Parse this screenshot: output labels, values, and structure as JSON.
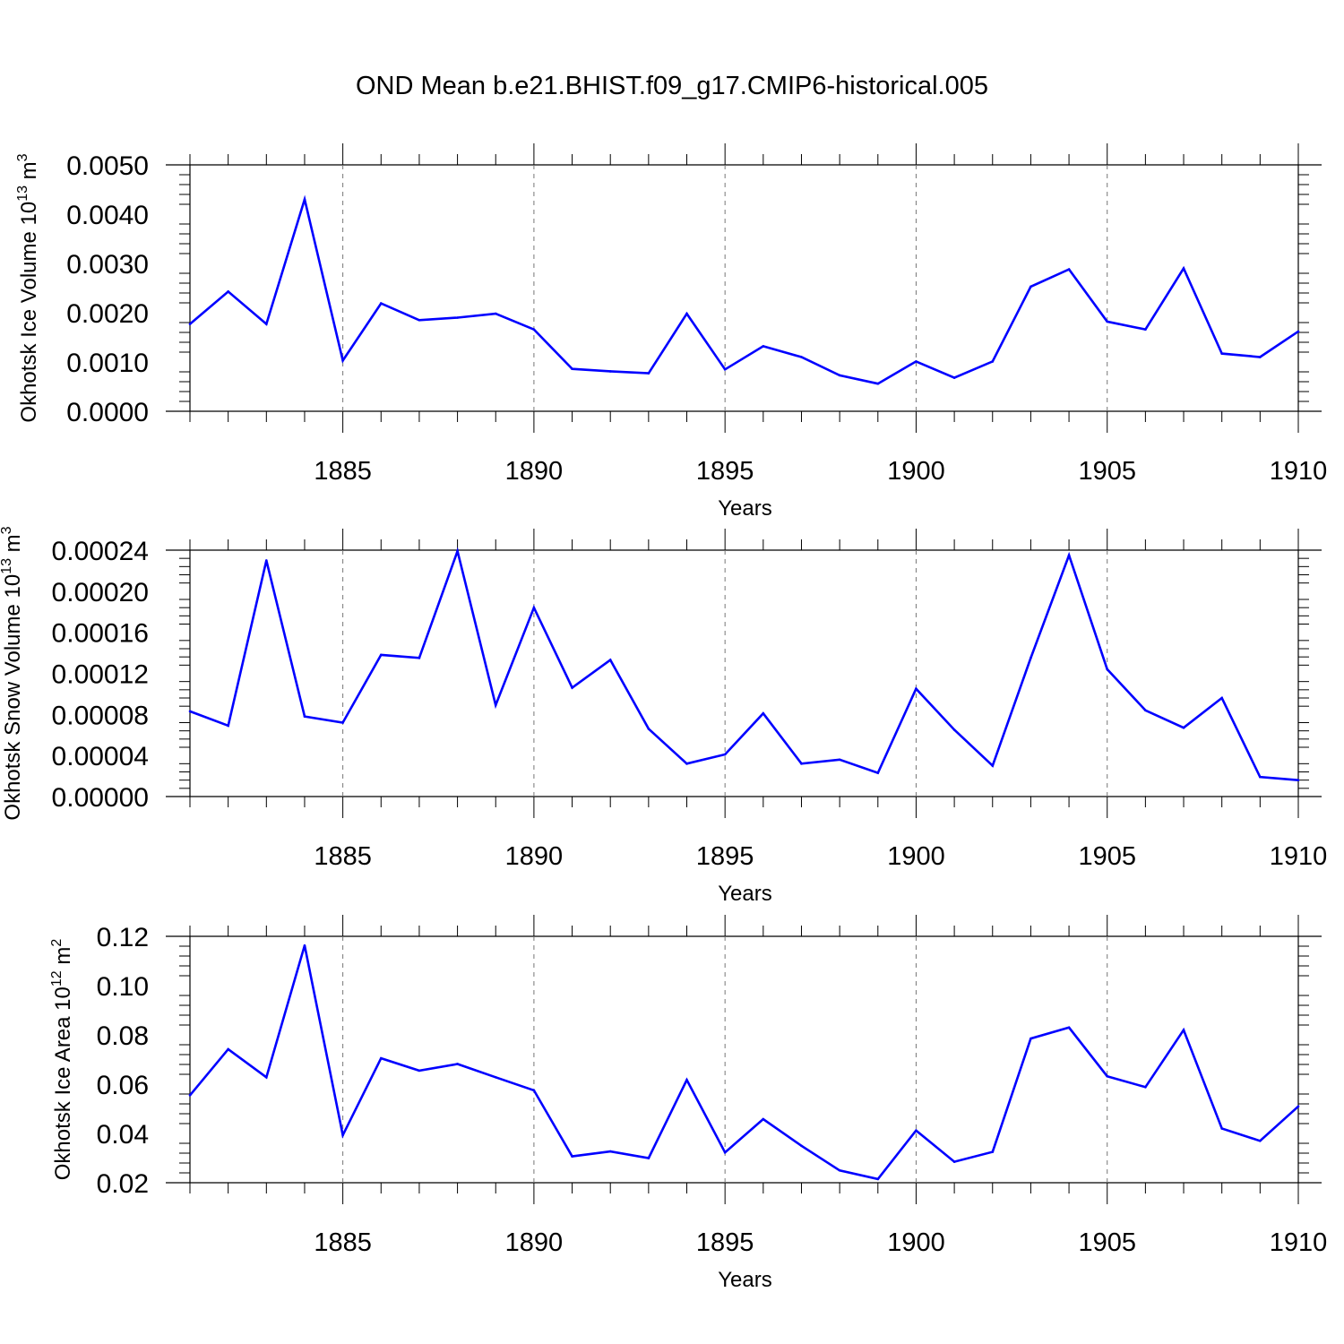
{
  "figure": {
    "title": "OND Mean b.e21.BHIST.f09_g17.CMIP6-historical.005",
    "line_color": "#0000ff"
  },
  "chart_data": [
    {
      "type": "line",
      "title": "OND Mean b.e21.BHIST.f09_g17.CMIP6-historical.005",
      "xlabel": "Years",
      "ylabel": "Okhotsk Ice Volume 10",
      "ylabel_exp": "13",
      "ylabel_unit": " m",
      "ylabel_unit_exp": "3",
      "xlim": [
        1881,
        1910
      ],
      "ylim": [
        0,
        0.005
      ],
      "x_ticks": [
        1885,
        1890,
        1895,
        1900,
        1905,
        1910
      ],
      "x_tick_labels": [
        "1885",
        "1890",
        "1895",
        "1900",
        "1905",
        "1910"
      ],
      "y_ticks": [
        0,
        0.001,
        0.002,
        0.003,
        0.004,
        0.005
      ],
      "y_tick_labels": [
        "0.0000",
        "0.0010",
        "0.0020",
        "0.0030",
        "0.0040",
        "0.0050"
      ],
      "y_minor_step": 0.0002,
      "x": [
        1881,
        1882,
        1883,
        1884,
        1885,
        1886,
        1887,
        1888,
        1889,
        1890,
        1891,
        1892,
        1893,
        1894,
        1895,
        1896,
        1897,
        1898,
        1899,
        1900,
        1901,
        1902,
        1903,
        1904,
        1905,
        1906,
        1907,
        1908,
        1909,
        1910
      ],
      "values": [
        0.00177,
        0.00243,
        0.00177,
        0.0043,
        0.00103,
        0.00219,
        0.00185,
        0.0019,
        0.00198,
        0.00166,
        0.00086,
        0.00081,
        0.00077,
        0.00198,
        0.00085,
        0.00132,
        0.0011,
        0.00073,
        0.00056,
        0.00101,
        0.00068,
        0.00101,
        0.00253,
        0.00288,
        0.00182,
        0.00166,
        0.0029,
        0.00117,
        0.0011,
        0.00162
      ]
    },
    {
      "type": "line",
      "xlabel": "Years",
      "ylabel": "Okhotsk Snow Volume 10",
      "ylabel_exp": "13",
      "ylabel_unit": " m",
      "ylabel_unit_exp": "3",
      "xlim": [
        1881,
        1910
      ],
      "ylim": [
        0,
        0.00024
      ],
      "x_ticks": [
        1885,
        1890,
        1895,
        1900,
        1905,
        1910
      ],
      "x_tick_labels": [
        "1885",
        "1890",
        "1895",
        "1900",
        "1905",
        "1910"
      ],
      "y_ticks": [
        0,
        4e-05,
        8e-05,
        0.00012,
        0.00016,
        0.0002,
        0.00024
      ],
      "y_tick_labels": [
        "0.00000",
        "0.00004",
        "0.00008",
        "0.00012",
        "0.00016",
        "0.00020",
        "0.00024"
      ],
      "y_minor_step": 8e-06,
      "x": [
        1881,
        1882,
        1883,
        1884,
        1885,
        1886,
        1887,
        1888,
        1889,
        1890,
        1891,
        1892,
        1893,
        1894,
        1895,
        1896,
        1897,
        1898,
        1899,
        1900,
        1901,
        1902,
        1903,
        1904,
        1905,
        1906,
        1907,
        1908,
        1909,
        1910
      ],
      "values": [
        8.3e-05,
        6.9e-05,
        0.00023,
        7.8e-05,
        7.2e-05,
        0.000138,
        0.000135,
        0.000239,
        8.9e-05,
        0.000184,
        0.000106,
        0.000133,
        6.6e-05,
        3.2e-05,
        4.1e-05,
        8.1e-05,
        3.2e-05,
        3.6e-05,
        2.3e-05,
        0.000105,
        6.5e-05,
        3e-05,
        0.000135,
        0.000235,
        0.000124,
        8.4e-05,
        6.7e-05,
        9.6e-05,
        1.9e-05,
        1.6e-05
      ]
    },
    {
      "type": "line",
      "xlabel": "Years",
      "ylabel": "Okhotsk Ice Area 10",
      "ylabel_exp": "12",
      "ylabel_unit": " m",
      "ylabel_unit_exp": "2",
      "xlim": [
        1881,
        1910
      ],
      "ylim": [
        0.02,
        0.12
      ],
      "x_ticks": [
        1885,
        1890,
        1895,
        1900,
        1905,
        1910
      ],
      "x_tick_labels": [
        "1885",
        "1890",
        "1895",
        "1900",
        "1905",
        "1910"
      ],
      "y_ticks": [
        0.02,
        0.04,
        0.06,
        0.08,
        0.1,
        0.12
      ],
      "y_tick_labels": [
        "0.02",
        "0.04",
        "0.06",
        "0.08",
        "0.10",
        "0.12"
      ],
      "y_minor_step": 0.004,
      "x": [
        1881,
        1882,
        1883,
        1884,
        1885,
        1886,
        1887,
        1888,
        1889,
        1890,
        1891,
        1892,
        1893,
        1894,
        1895,
        1896,
        1897,
        1898,
        1899,
        1900,
        1901,
        1902,
        1903,
        1904,
        1905,
        1906,
        1907,
        1908,
        1909,
        1910
      ],
      "values": [
        0.0555,
        0.0742,
        0.0628,
        0.1163,
        0.0393,
        0.0705,
        0.0655,
        0.0682,
        0.0628,
        0.0575,
        0.0307,
        0.0327,
        0.03,
        0.0617,
        0.0323,
        0.0458,
        0.035,
        0.025,
        0.0215,
        0.0412,
        0.0285,
        0.0325,
        0.0785,
        0.083,
        0.0632,
        0.0588,
        0.082,
        0.042,
        0.037,
        0.051
      ]
    }
  ]
}
